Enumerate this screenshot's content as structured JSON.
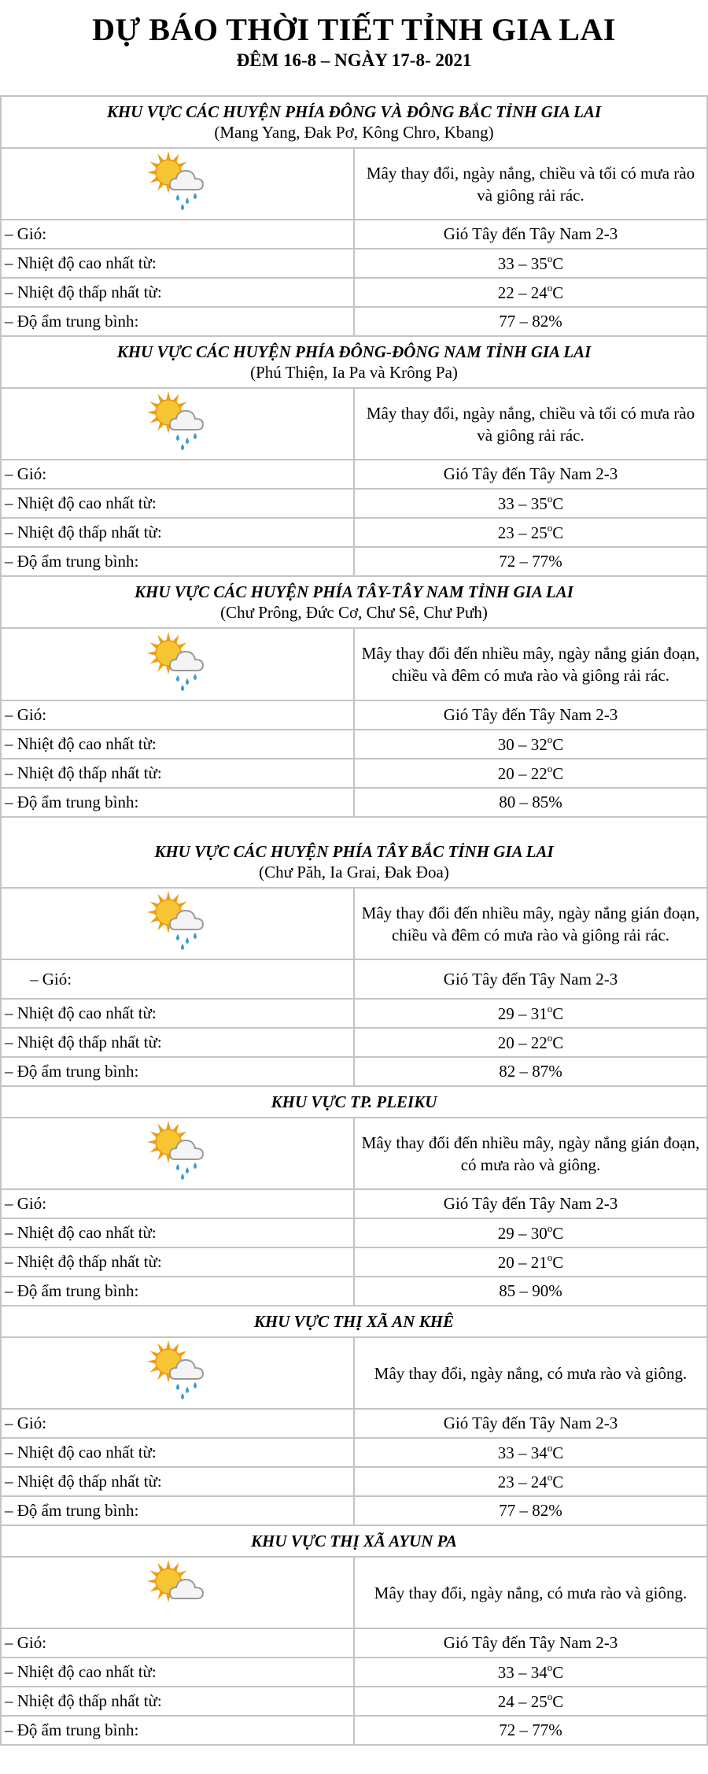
{
  "header": {
    "title": "DỰ BÁO THỜI TIẾT TỈNH GIA LAI",
    "subtitle": "ĐÊM 16-8 – NGÀY 17-8- 2021"
  },
  "labels": {
    "wind": "– Gió:",
    "temp_max": "– Nhiệt độ cao nhất từ:",
    "temp_min": "– Nhiệt độ thấp nhất từ:",
    "humidity": "– Độ ẩm trung bình:",
    "degree_mark": "o",
    "celsius": "C"
  },
  "sections": [
    {
      "title": "KHU VỰC CÁC HUYỆN PHÍA ĐÔNG VÀ ĐÔNG BẮC TỈNH GIA LAI",
      "districts": "(Mang Yang, Đak Pơ, Kông Chro, Kbang)",
      "icon": "sun-cloud-rain-icon",
      "description": "Mây thay đổi, ngày nắng, chiều và tối có mưa rào và giông rải rác.",
      "wind": "Gió Tây đến Tây Nam 2-3",
      "temp_max": "33 – 35",
      "temp_min": "22 – 24",
      "humidity": "77 – 82%"
    },
    {
      "title": "KHU VỰC CÁC HUYỆN PHÍA ĐÔNG-ĐÔNG NAM TỈNH GIA LAI",
      "districts": "(Phú Thiện, Ia Pa và Krông Pa)",
      "icon": "sun-cloud-rain-icon",
      "description": "Mây thay đổi, ngày nắng, chiều và tối có mưa rào và giông rải rác.",
      "wind": "Gió Tây đến Tây Nam 2-3",
      "temp_max": "33 – 35",
      "temp_min": "23 – 25",
      "humidity": "72 – 77%"
    },
    {
      "title": "KHU VỰC CÁC HUYỆN PHÍA TÂY-TÂY NAM TỈNH GIA LAI",
      "districts": "(Chư Prông, Đức Cơ, Chư Sê, Chư Pưh)",
      "icon": "sun-cloud-rain-icon",
      "description": "Mây thay đổi đến nhiều mây, ngày nắng gián đoạn, chiều và đêm có mưa rào và giông rải rác.",
      "wind": "Gió Tây đến Tây Nam 2-3",
      "temp_max": "30 – 32",
      "temp_min": "20 – 22",
      "humidity": "80 – 85%"
    },
    {
      "title": "KHU VỰC CÁC HUYỆN PHÍA TÂY BẮC TỈNH GIA LAI",
      "districts": "(Chư Păh, Ia Grai, Đak Đoa)",
      "icon": "sun-cloud-rain-icon",
      "description": "Mây thay đổi đến nhiều mây, ngày nắng gián đoạn, chiều và đêm có mưa rào và giông rải rác.",
      "wind": "Gió Tây đến Tây Nam 2-3",
      "temp_max": "29 – 31",
      "temp_min": "20 – 22",
      "humidity": "82 – 87%",
      "blank_line": true,
      "indent_wind": true
    },
    {
      "title": "KHU VỰC TP. PLEIKU",
      "districts": "",
      "icon": "sun-cloud-rain-icon",
      "description": "Mây thay đổi đến nhiều mây, ngày nắng gián đoạn, có mưa rào và giông.",
      "wind": "Gió Tây đến Tây Nam 2-3",
      "temp_max": "29 – 30",
      "temp_min": "20 – 21",
      "humidity": "85 – 90%"
    },
    {
      "title": "KHU VỰC THỊ XÃ AN KHÊ",
      "districts": "",
      "icon": "sun-cloud-rain-icon",
      "description": "Mây thay đổi, ngày nắng, có mưa rào và giông.",
      "wind": "Gió Tây đến Tây Nam 2-3",
      "temp_max": "33 – 34",
      "temp_min": "23 – 24",
      "humidity": "77 – 82%"
    },
    {
      "title": "KHU VỰC THỊ XÃ AYUN PA",
      "districts": "",
      "icon": "sun-cloud-icon",
      "description": "Mây thay đổi, ngày nắng, có mưa rào và giông.",
      "wind": "Gió Tây đến Tây Nam 2-3",
      "temp_max": "33 – 34",
      "temp_min": "24 – 25",
      "humidity": "72 – 77%"
    }
  ]
}
